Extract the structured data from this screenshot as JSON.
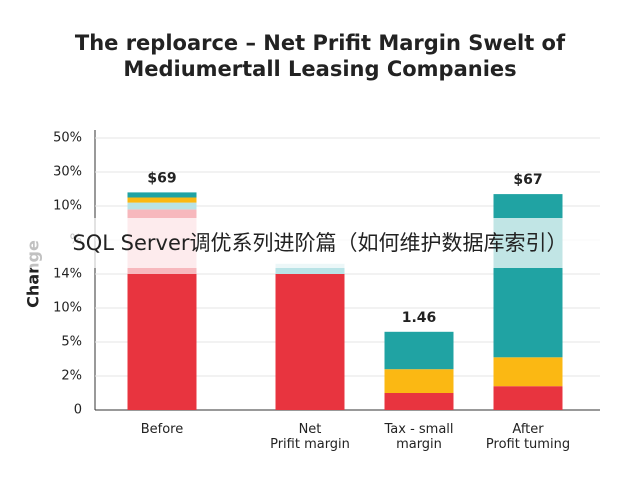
{
  "chart_data": {
    "type": "stacked_bar",
    "title": [
      "The reploarce – Net Prifit Margin Swelt of",
      "Mediumertall Leasing Companies"
    ],
    "y_axis_label": "Change",
    "categories": [
      "Before",
      "Net\nPrifit margin",
      "Tax - small\nmargin",
      "After\nProfit tuming"
    ],
    "series": [
      {
        "color": "#e8343f",
        "values": [
          4.0,
          4.0,
          0.5,
          0.7
        ]
      },
      {
        "color": "#f7b8bd",
        "values": [
          1.9,
          0,
          0,
          0
        ]
      },
      {
        "color": "#b9e3e6",
        "values": [
          0.2,
          0.3,
          0,
          0
        ]
      },
      {
        "color": "#fbb813",
        "values": [
          0.15,
          0,
          0.7,
          0.85
        ]
      },
      {
        "color": "#20a3a3",
        "values": [
          0.15,
          0,
          1.1,
          4.8
        ]
      }
    ],
    "ylim": [
      0,
      8
    ],
    "yticks": [
      0,
      1,
      2,
      3,
      4,
      5,
      6,
      7,
      8
    ],
    "ytick_labels": [
      "0",
      "2%",
      "5%",
      "10%",
      "14%",
      "%",
      "10%",
      "30%",
      "50%"
    ],
    "annotations": [
      {
        "category": 0,
        "text": "$69"
      },
      {
        "category": 2,
        "text": "1.46"
      },
      {
        "category": 3,
        "text": "$67"
      }
    ],
    "watermark": "SQL Server调优系列进阶篇（如何维护数据库索引）"
  }
}
